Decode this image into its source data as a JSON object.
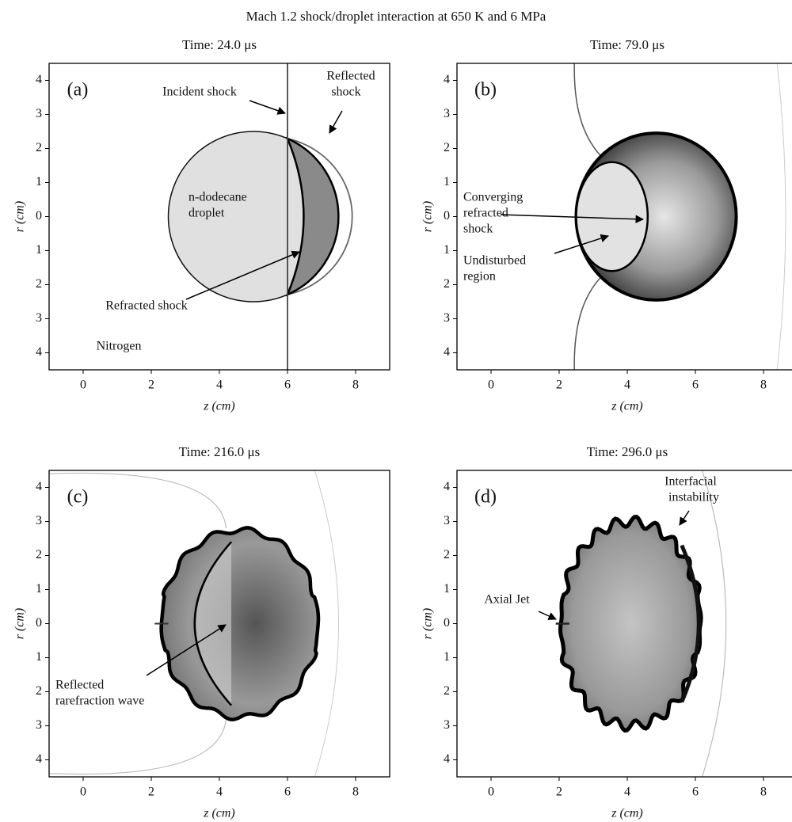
{
  "title": "Mach 1.2 shock/droplet interaction at 650 K and 6 MPa",
  "panels": [
    {
      "time": "Time: 24.0 μs",
      "letter": "(a)",
      "xlabel": "z (cm)",
      "ylabel": "r (cm)",
      "xlim": [
        -1,
        9
      ],
      "ylim": [
        -4.5,
        4.5
      ],
      "xticks": [
        0,
        2,
        4,
        6,
        8
      ],
      "yticks": [
        4,
        3,
        2,
        1,
        0,
        {
          "value": -1,
          "label": "1"
        },
        {
          "value": -2,
          "label": "2"
        },
        {
          "value": -3,
          "label": "3"
        },
        {
          "value": -4,
          "label": "4"
        }
      ],
      "annotations": [
        {
          "lines": [
            "Incident shock"
          ]
        },
        {
          "lines": [
            "Reflected",
            "shock"
          ]
        },
        {
          "lines": [
            "n-dodecane",
            "droplet"
          ]
        },
        {
          "lines": [
            "Refracted shock"
          ]
        },
        {
          "lines": [
            "Nitrogen"
          ]
        }
      ]
    },
    {
      "time": "Time: 79.0 μs",
      "letter": "(b)",
      "xlabel": "z (cm)",
      "ylabel": "r (cm)",
      "xlim": [
        -1,
        9
      ],
      "ylim": [
        -4.5,
        4.5
      ],
      "xticks": [
        0,
        2,
        4,
        6,
        8
      ],
      "yticks": [
        4,
        3,
        2,
        1,
        0,
        {
          "value": -1,
          "label": "1"
        },
        {
          "value": -2,
          "label": "2"
        },
        {
          "value": -3,
          "label": "3"
        },
        {
          "value": -4,
          "label": "4"
        }
      ],
      "annotations": [
        {
          "lines": [
            "Converging",
            "refracted",
            "shock"
          ]
        },
        {
          "lines": [
            "Undisturbed",
            "region"
          ]
        }
      ]
    },
    {
      "time": "Time: 216.0 μs",
      "letter": "(c)",
      "xlabel": "z (cm)",
      "ylabel": "r (cm)",
      "xlim": [
        -1,
        9
      ],
      "ylim": [
        -4.5,
        4.5
      ],
      "xticks": [
        0,
        2,
        4,
        6,
        8
      ],
      "yticks": [
        4,
        3,
        2,
        1,
        0,
        {
          "value": -1,
          "label": "1"
        },
        {
          "value": -2,
          "label": "2"
        },
        {
          "value": -3,
          "label": "3"
        },
        {
          "value": -4,
          "label": "4"
        }
      ],
      "annotations": [
        {
          "lines": [
            "Reflected",
            "rarefraction wave"
          ]
        }
      ]
    },
    {
      "time": "Time: 296.0 μs",
      "letter": "(d)",
      "xlabel": "z (cm)",
      "ylabel": "r (cm)",
      "xlim": [
        -1,
        9
      ],
      "ylim": [
        -4.5,
        4.5
      ],
      "xticks": [
        0,
        2,
        4,
        6,
        8
      ],
      "yticks": [
        4,
        3,
        2,
        1,
        0,
        {
          "value": -1,
          "label": "1"
        },
        {
          "value": -2,
          "label": "2"
        },
        {
          "value": -3,
          "label": "3"
        },
        {
          "value": -4,
          "label": "4"
        }
      ],
      "annotations": [
        {
          "lines": [
            "Interfacial",
            "instability"
          ]
        },
        {
          "lines": [
            "Axial Jet"
          ]
        }
      ]
    }
  ]
}
